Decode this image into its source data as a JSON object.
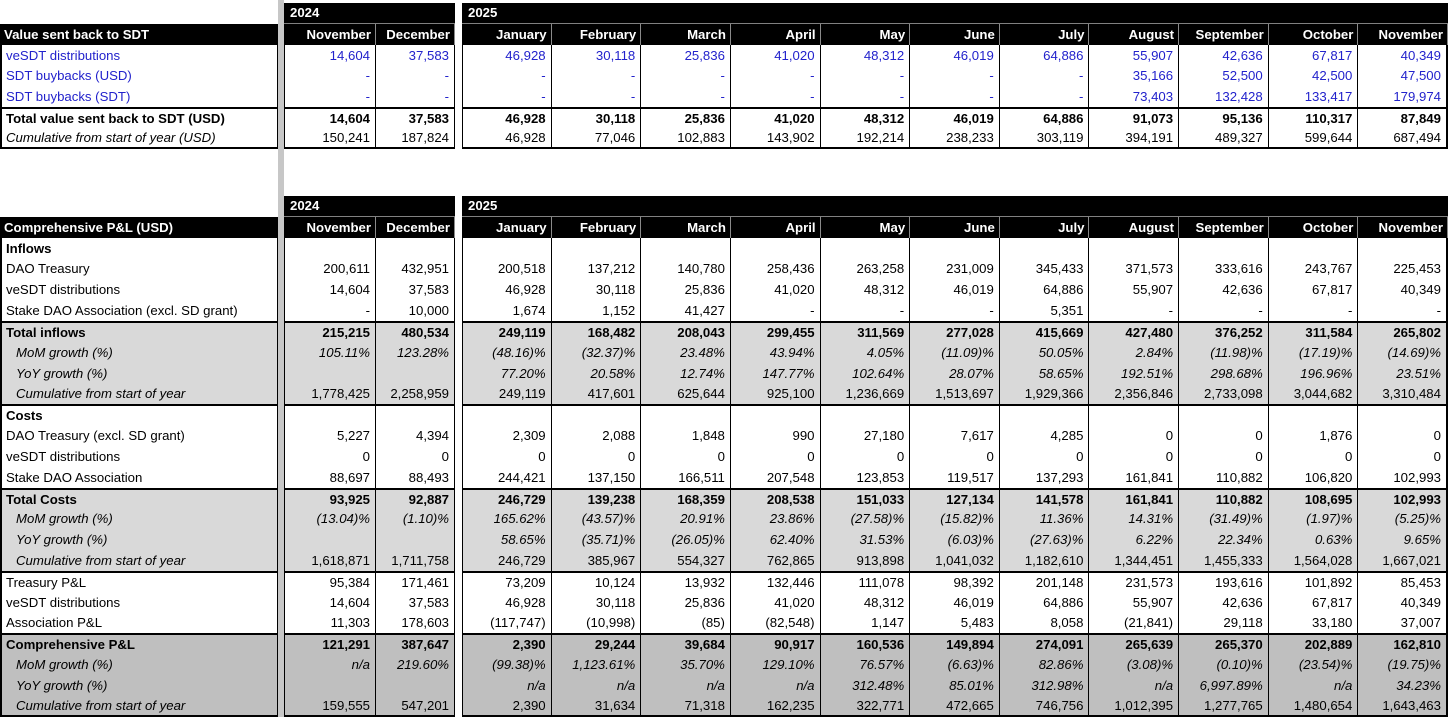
{
  "colors": {
    "blue_value": "#2222CC",
    "light_gray": "#D9D9D9",
    "dark_gray": "#BFBFBF",
    "divider_gray": "#C7C7C7",
    "header_bg": "#000000",
    "header_text": "#FFFFFF"
  },
  "table1": {
    "title": "Value sent back to SDT",
    "year_groups": [
      {
        "label": "2024",
        "span": 2
      },
      {
        "label": "2025",
        "span": 11
      }
    ],
    "months": [
      "November",
      "December",
      "January",
      "February",
      "March",
      "April",
      "May",
      "June",
      "July",
      "August",
      "September",
      "October",
      "November"
    ],
    "rows": [
      {
        "label": "veSDT distributions",
        "cls": "blue",
        "values": [
          "14,604",
          "37,583",
          "46,928",
          "30,118",
          "25,836",
          "41,020",
          "48,312",
          "46,019",
          "64,886",
          "55,907",
          "42,636",
          "67,817",
          "40,349"
        ]
      },
      {
        "label": "SDT buybacks (USD)",
        "cls": "blue",
        "values": [
          "-",
          "-",
          "-",
          "-",
          "-",
          "-",
          "-",
          "-",
          "-",
          "35,166",
          "52,500",
          "42,500",
          "47,500"
        ]
      },
      {
        "label": "SDT buybacks (SDT)",
        "cls": "blue",
        "values": [
          "-",
          "-",
          "-",
          "-",
          "-",
          "-",
          "-",
          "-",
          "-",
          "73,403",
          "132,428",
          "133,417",
          "179,974"
        ]
      },
      {
        "label": "Total value sent back to SDT (USD)",
        "cls": "total",
        "bt": true,
        "values": [
          "14,604",
          "37,583",
          "46,928",
          "30,118",
          "25,836",
          "41,020",
          "48,312",
          "46,019",
          "64,886",
          "91,073",
          "95,136",
          "110,317",
          "87,849"
        ]
      },
      {
        "label": "Cumulative from start of year (USD)",
        "cls": "cum1",
        "bb": true,
        "values": [
          "150,241",
          "187,824",
          "46,928",
          "77,046",
          "102,883",
          "143,902",
          "192,214",
          "238,233",
          "303,119",
          "394,191",
          "489,327",
          "599,644",
          "687,494"
        ]
      }
    ]
  },
  "table2": {
    "title": "Comprehensive P&L (USD)",
    "year_groups": [
      {
        "label": "2024",
        "span": 2
      },
      {
        "label": "2025",
        "span": 11
      }
    ],
    "months": [
      "November",
      "December",
      "January",
      "February",
      "March",
      "April",
      "May",
      "June",
      "July",
      "August",
      "September",
      "October",
      "November"
    ],
    "rows": [
      {
        "label": "Inflows",
        "cls": "section",
        "values": [
          "",
          "",
          "",
          "",
          "",
          "",
          "",
          "",
          "",
          "",
          "",
          "",
          ""
        ]
      },
      {
        "label": "DAO Treasury",
        "cls": "data",
        "values": [
          "200,611",
          "432,951",
          "200,518",
          "137,212",
          "140,780",
          "258,436",
          "263,258",
          "231,009",
          "345,433",
          "371,573",
          "333,616",
          "243,767",
          "225,453"
        ]
      },
      {
        "label": "veSDT distributions",
        "cls": "data",
        "values": [
          "14,604",
          "37,583",
          "46,928",
          "30,118",
          "25,836",
          "41,020",
          "48,312",
          "46,019",
          "64,886",
          "55,907",
          "42,636",
          "67,817",
          "40,349"
        ]
      },
      {
        "label": "Stake DAO Association (excl. SD grant)",
        "cls": "data",
        "values": [
          "-",
          "10,000",
          "1,674",
          "1,152",
          "41,427",
          "-",
          "-",
          "-",
          "5,351",
          "-",
          "-",
          "-",
          "-"
        ]
      },
      {
        "label": "Total inflows",
        "cls": "total g1",
        "bt": true,
        "values": [
          "215,215",
          "480,534",
          "249,119",
          "168,482",
          "208,043",
          "299,455",
          "311,569",
          "277,028",
          "415,669",
          "427,480",
          "376,252",
          "311,584",
          "265,802"
        ]
      },
      {
        "label": "MoM growth (%)",
        "cls": "pct g1",
        "values": [
          "105.11%",
          "123.28%",
          "(48.16)%",
          "(32.37)%",
          "23.48%",
          "43.94%",
          "4.05%",
          "(11.09)%",
          "50.05%",
          "2.84%",
          "(11.98)%",
          "(17.19)%",
          "(14.69)%"
        ]
      },
      {
        "label": "YoY growth (%)",
        "cls": "pct g1",
        "values": [
          "",
          "",
          "77.20%",
          "20.58%",
          "12.74%",
          "147.77%",
          "102.64%",
          "28.07%",
          "58.65%",
          "192.51%",
          "298.68%",
          "196.96%",
          "23.51%"
        ]
      },
      {
        "label": "Cumulative from start of year",
        "cls": "cum g1",
        "values": [
          "1,778,425",
          "2,258,959",
          "249,119",
          "417,601",
          "625,644",
          "925,100",
          "1,236,669",
          "1,513,697",
          "1,929,366",
          "2,356,846",
          "2,733,098",
          "3,044,682",
          "3,310,484"
        ]
      },
      {
        "label": "Costs",
        "cls": "section",
        "bt": true,
        "values": [
          "",
          "",
          "",
          "",
          "",
          "",
          "",
          "",
          "",
          "",
          "",
          "",
          ""
        ]
      },
      {
        "label": "DAO Treasury (excl. SD grant)",
        "cls": "data",
        "values": [
          "5,227",
          "4,394",
          "2,309",
          "2,088",
          "1,848",
          "990",
          "27,180",
          "7,617",
          "4,285",
          "0",
          "0",
          "1,876",
          "0"
        ]
      },
      {
        "label": "veSDT distributions",
        "cls": "data",
        "values": [
          "0",
          "0",
          "0",
          "0",
          "0",
          "0",
          "0",
          "0",
          "0",
          "0",
          "0",
          "0",
          "0"
        ]
      },
      {
        "label": "Stake DAO Association",
        "cls": "data",
        "values": [
          "88,697",
          "88,493",
          "244,421",
          "137,150",
          "166,511",
          "207,548",
          "123,853",
          "119,517",
          "137,293",
          "161,841",
          "110,882",
          "106,820",
          "102,993"
        ]
      },
      {
        "label": "Total Costs",
        "cls": "total g1",
        "bt": true,
        "values": [
          "93,925",
          "92,887",
          "246,729",
          "139,238",
          "168,359",
          "208,538",
          "151,033",
          "127,134",
          "141,578",
          "161,841",
          "110,882",
          "108,695",
          "102,993"
        ]
      },
      {
        "label": "MoM growth (%)",
        "cls": "pct g1",
        "values": [
          "(13.04)%",
          "(1.10)%",
          "165.62%",
          "(43.57)%",
          "20.91%",
          "23.86%",
          "(27.58)%",
          "(15.82)%",
          "11.36%",
          "14.31%",
          "(31.49)%",
          "(1.97)%",
          "(5.25)%"
        ]
      },
      {
        "label": "YoY growth (%)",
        "cls": "pct g1",
        "values": [
          "",
          "",
          "58.65%",
          "(35.71)%",
          "(26.05)%",
          "62.40%",
          "31.53%",
          "(6.03)%",
          "(27.63)%",
          "6.22%",
          "22.34%",
          "0.63%",
          "9.65%"
        ]
      },
      {
        "label": "Cumulative from start of year",
        "cls": "cum g1",
        "values": [
          "1,618,871",
          "1,711,758",
          "246,729",
          "385,967",
          "554,327",
          "762,865",
          "913,898",
          "1,041,032",
          "1,182,610",
          "1,344,451",
          "1,455,333",
          "1,564,028",
          "1,667,021"
        ]
      },
      {
        "label": "Treasury P&L",
        "cls": "data",
        "bt": true,
        "values": [
          "95,384",
          "171,461",
          "73,209",
          "10,124",
          "13,932",
          "132,446",
          "111,078",
          "98,392",
          "201,148",
          "231,573",
          "193,616",
          "101,892",
          "85,453"
        ]
      },
      {
        "label": "veSDT distributions",
        "cls": "data",
        "values": [
          "14,604",
          "37,583",
          "46,928",
          "30,118",
          "25,836",
          "41,020",
          "48,312",
          "46,019",
          "64,886",
          "55,907",
          "42,636",
          "67,817",
          "40,349"
        ]
      },
      {
        "label": "Association P&L",
        "cls": "data",
        "values": [
          "11,303",
          "178,603",
          "(117,747)",
          "(10,998)",
          "(85)",
          "(82,548)",
          "1,147",
          "5,483",
          "8,058",
          "(21,841)",
          "29,118",
          "33,180",
          "37,007"
        ]
      },
      {
        "label": "Comprehensive P&L",
        "cls": "total g2",
        "bt": true,
        "values": [
          "121,291",
          "387,647",
          "2,390",
          "29,244",
          "39,684",
          "90,917",
          "160,536",
          "149,894",
          "274,091",
          "265,639",
          "265,370",
          "202,889",
          "162,810"
        ]
      },
      {
        "label": "MoM growth (%)",
        "cls": "pct g2",
        "values": [
          "n/a",
          "219.60%",
          "(99.38)%",
          "1,123.61%",
          "35.70%",
          "129.10%",
          "76.57%",
          "(6.63)%",
          "82.86%",
          "(3.08)%",
          "(0.10)%",
          "(23.54)%",
          "(19.75)%"
        ]
      },
      {
        "label": "YoY growth (%)",
        "cls": "pct g2",
        "values": [
          "",
          "",
          "n/a",
          "n/a",
          "n/a",
          "n/a",
          "312.48%",
          "85.01%",
          "312.98%",
          "n/a",
          "6,997.89%",
          "n/a",
          "34.23%"
        ]
      },
      {
        "label": "Cumulative from start of year",
        "cls": "cum g2",
        "bb": true,
        "values": [
          "159,555",
          "547,201",
          "2,390",
          "31,634",
          "71,318",
          "162,235",
          "322,771",
          "472,665",
          "746,756",
          "1,012,395",
          "1,277,765",
          "1,480,654",
          "1,643,463"
        ]
      }
    ]
  }
}
